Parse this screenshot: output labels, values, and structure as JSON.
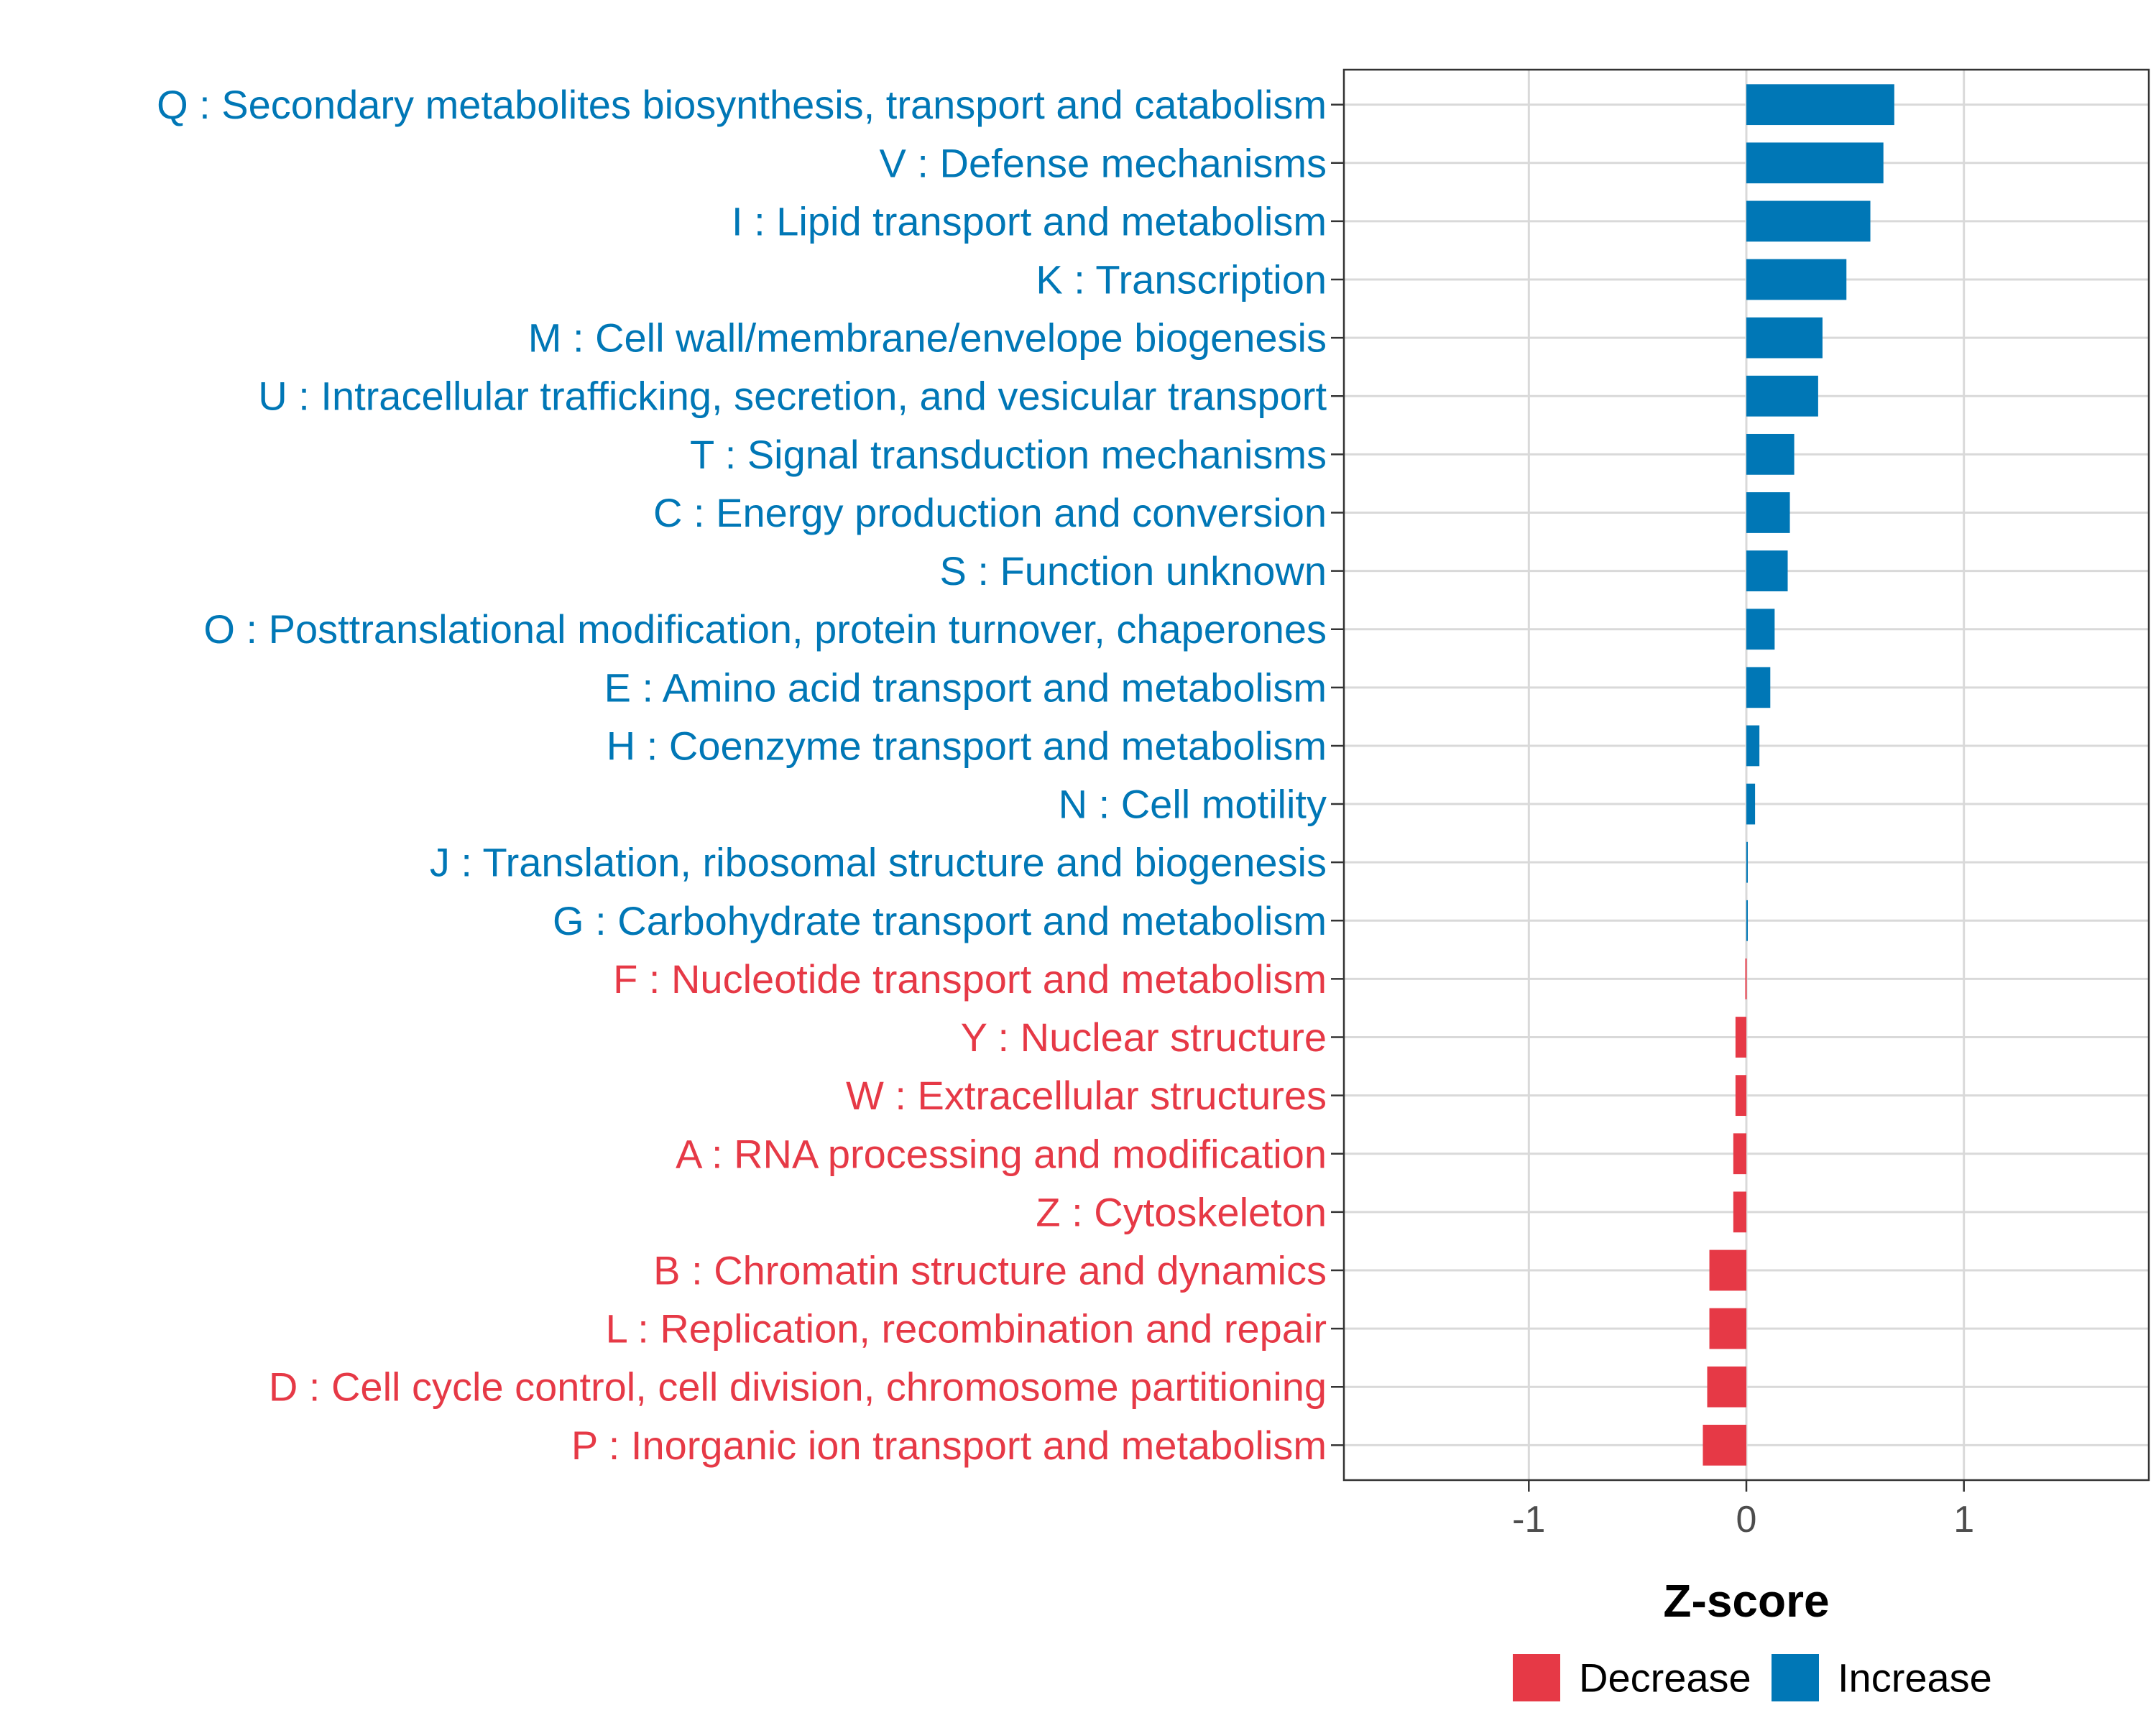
{
  "chart_data": {
    "type": "bar",
    "orientation": "horizontal",
    "title": "",
    "xlabel": "Z-score",
    "ylabel": "",
    "xlim": [
      -1.85,
      1.85
    ],
    "x_ticks": [
      -1,
      0,
      1
    ],
    "x_tick_labels": [
      "-1",
      "0",
      "1"
    ],
    "grid": true,
    "legend_position": "bottom",
    "colors": {
      "Decrease": "#E63946",
      "Increase": "#0077B6"
    },
    "legend": [
      {
        "name": "Decrease",
        "color": "#E63946"
      },
      {
        "name": "Increase",
        "color": "#0077B6"
      }
    ],
    "categories": [
      "Q : Secondary metabolites biosynthesis, transport and catabolism",
      "V : Defense mechanisms",
      "I : Lipid transport and metabolism",
      "K : Transcription",
      "M : Cell wall/membrane/envelope biogenesis",
      "U : Intracellular trafficking, secretion, and vesicular transport",
      "T : Signal transduction mechanisms",
      "C : Energy production and conversion",
      "S : Function unknown",
      "O : Posttranslational modification, protein turnover, chaperones",
      "E : Amino acid transport and metabolism",
      "H : Coenzyme transport and metabolism",
      "N : Cell motility",
      "J : Translation, ribosomal structure and biogenesis",
      "G : Carbohydrate transport and metabolism",
      "F : Nucleotide transport and metabolism",
      "Y : Nuclear structure",
      "W : Extracellular structures",
      "A : RNA processing and modification",
      "Z : Cytoskeleton",
      "B : Chromatin structure and dynamics",
      "L : Replication, recombination and repair",
      "D : Cell cycle control, cell division, chromosome partitioning",
      "P : Inorganic ion transport and metabolism"
    ],
    "values": [
      0.68,
      0.63,
      0.57,
      0.46,
      0.35,
      0.33,
      0.22,
      0.2,
      0.19,
      0.13,
      0.11,
      0.06,
      0.04,
      0.005,
      0.0,
      -0.005,
      -0.05,
      -0.05,
      -0.06,
      -0.06,
      -0.17,
      -0.17,
      -0.18,
      -0.2
    ],
    "direction": [
      "Increase",
      "Increase",
      "Increase",
      "Increase",
      "Increase",
      "Increase",
      "Increase",
      "Increase",
      "Increase",
      "Increase",
      "Increase",
      "Increase",
      "Increase",
      "Increase",
      "Increase",
      "Decrease",
      "Decrease",
      "Decrease",
      "Decrease",
      "Decrease",
      "Decrease",
      "Decrease",
      "Decrease",
      "Decrease"
    ]
  }
}
